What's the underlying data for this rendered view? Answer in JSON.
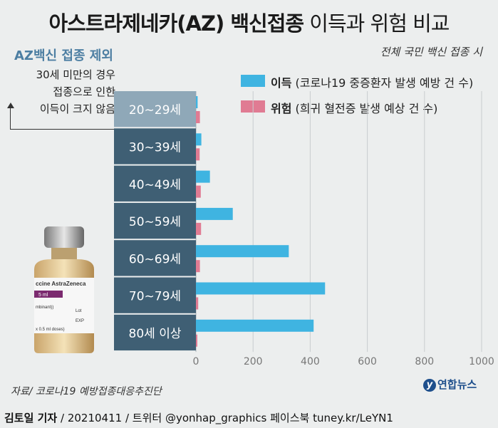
{
  "title_bold": "아스트라제네카(AZ) 백신접종",
  "title_light": "이득과 위험 비교",
  "subtitle": "전체 국민 백신 접종 시",
  "note": {
    "title": "AZ백신 접종 제외",
    "lines": [
      "30세 미만의 경우",
      "접종으로 인한",
      "이득이 크지 않음"
    ]
  },
  "vial_label": {
    "brand": "ccine AstraZeneca",
    "volume": "5 ml",
    "line1": "mbinant))",
    "lot": "Lot",
    "exp": "EXP",
    "doses": "x 0.5 ml doses)"
  },
  "legend": [
    {
      "bold": "이득",
      "rest": "(코로나19 중증환자 발생 예방 건 수)",
      "color": "#3fb4e1"
    },
    {
      "bold": "위험",
      "rest": "(희귀 혈전증 발생 예상 건 수)",
      "color": "#e07b93"
    }
  ],
  "source": "자료/ 코로나19 예방접종대응추진단",
  "credit_bold": "김토일 기자",
  "credit_rest": "/ 20210411 / 트위터 @yonhap_graphics  페이스북 tuney.kr/LeYN1",
  "logo": "연합뉴스",
  "colors": {
    "benefit": "#3fb4e1",
    "risk": "#e07b93",
    "label_bg": "#3f5f74",
    "label_bg_first": "#8fa8b8"
  },
  "chart_data": {
    "type": "bar",
    "orientation": "horizontal",
    "categories": [
      "20∼29세",
      "30∼39세",
      "40∼49세",
      "50∼59세",
      "60∼69세",
      "70∼79세",
      "80세 이상"
    ],
    "series": [
      {
        "name": "이득",
        "values": [
          6,
          19,
          49,
          129,
          325,
          452,
          412
        ]
      },
      {
        "name": "위험",
        "values": [
          14,
          13,
          17,
          18,
          14,
          8,
          5
        ]
      }
    ],
    "xticks": [
      0,
      200,
      400,
      600,
      800,
      1000
    ],
    "xlim": [
      0,
      1000
    ],
    "grid": true
  }
}
